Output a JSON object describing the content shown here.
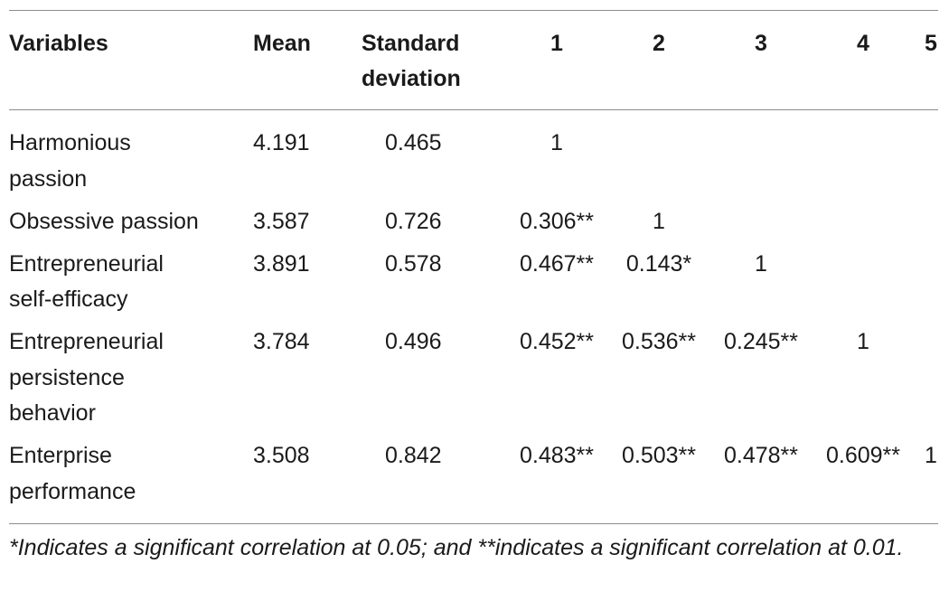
{
  "table": {
    "headers": {
      "variables": "Variables",
      "mean": "Mean",
      "sd_line1": "Standard",
      "sd_line2": "deviation",
      "c1": "1",
      "c2": "2",
      "c3": "3",
      "c4": "4",
      "c5": "5"
    },
    "rows": [
      {
        "label_lines": [
          "Harmonious",
          "passion"
        ],
        "mean": "4.191",
        "sd": "0.465",
        "c1": "1",
        "c2": "",
        "c3": "",
        "c4": "",
        "c5": ""
      },
      {
        "label_lines": [
          "Obsessive passion",
          ""
        ],
        "mean": "3.587",
        "sd": "0.726",
        "c1": "0.306**",
        "c2": "1",
        "c3": "",
        "c4": "",
        "c5": ""
      },
      {
        "label_lines": [
          "Entrepreneurial",
          "self-efficacy"
        ],
        "mean": "3.891",
        "sd": "0.578",
        "c1": "0.467**",
        "c2": "0.143*",
        "c3": "1",
        "c4": "",
        "c5": ""
      },
      {
        "label_lines": [
          "Entrepreneurial",
          "persistence",
          "behavior"
        ],
        "mean": "3.784",
        "sd": "0.496",
        "c1": "0.452**",
        "c2": "0.536**",
        "c3": "0.245**",
        "c4": "1",
        "c5": ""
      },
      {
        "label_lines": [
          "Enterprise",
          "performance"
        ],
        "mean": "3.508",
        "sd": "0.842",
        "c1": "0.483**",
        "c2": "0.503**",
        "c3": "0.478**",
        "c4": "0.609**",
        "c5": "1"
      }
    ],
    "footnote": "*Indicates a significant correlation at 0.05; and **indicates a significant correlation at 0.01."
  }
}
